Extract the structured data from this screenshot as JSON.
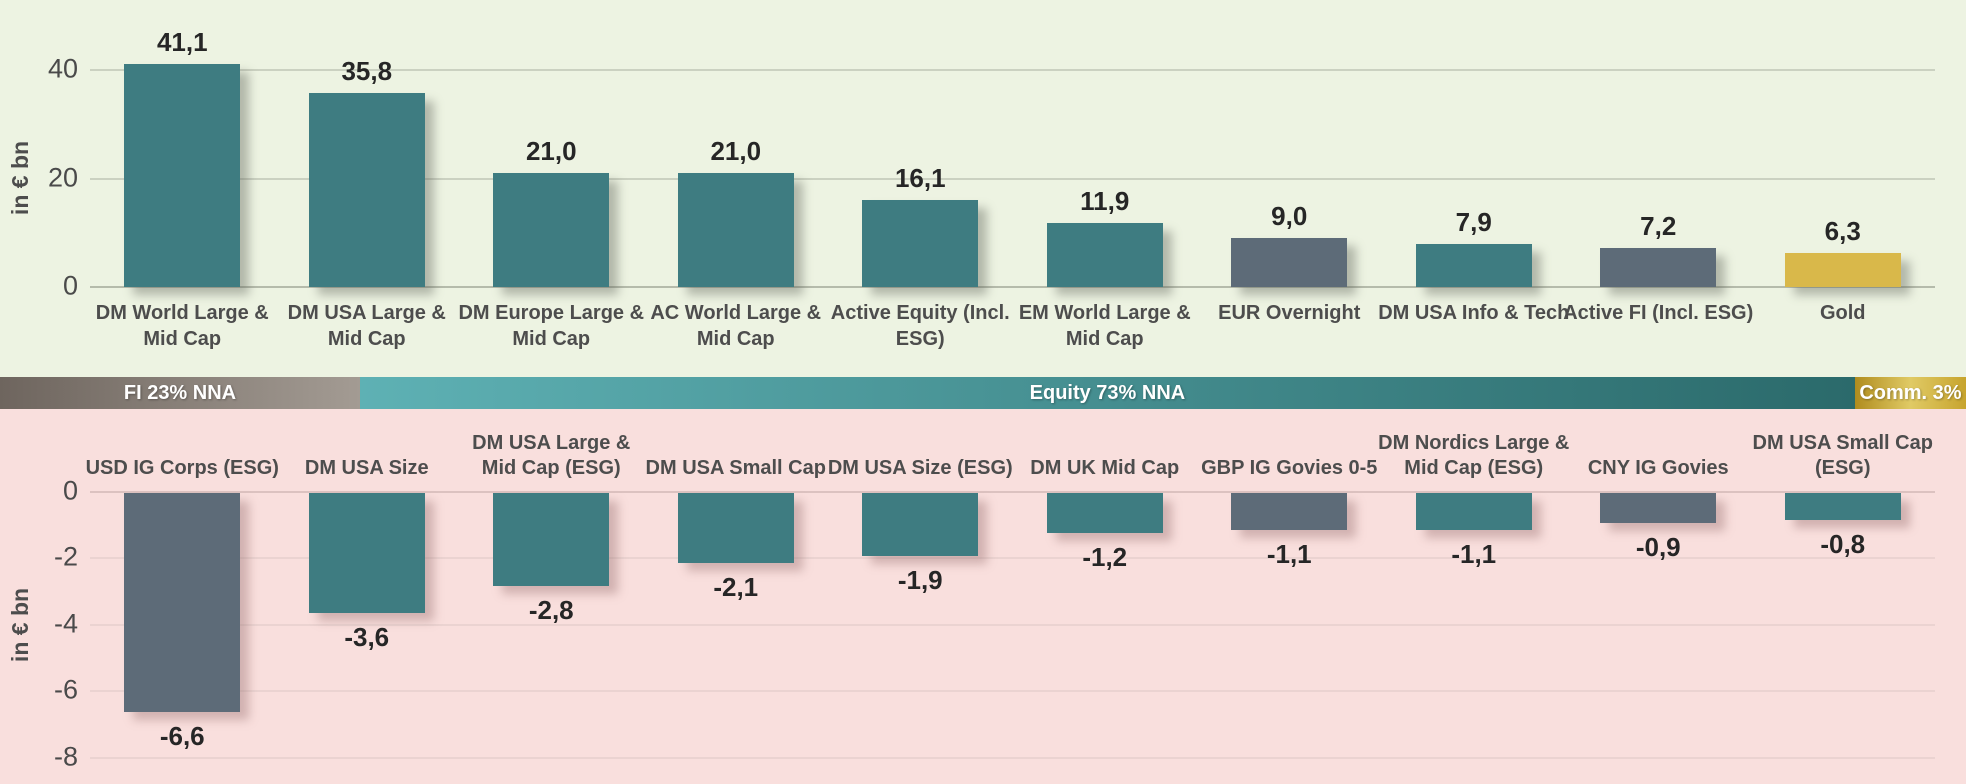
{
  "banner": {
    "segments": [
      {
        "label": "FI 23% NNA",
        "width_pct": 18.31,
        "gradient": [
          "#6E655E",
          "#A39B93"
        ]
      },
      {
        "label": "Equity 73% NNA",
        "width_pct": 76.04,
        "gradient": [
          "#5EB1B4",
          "#2B6A6B"
        ]
      },
      {
        "label": "Comm. 3%",
        "width_pct": 5.65,
        "gradient": [
          "#B08C1E",
          "#E0CA65",
          "#C7A42E"
        ]
      }
    ],
    "text_color": "#FFFFFF"
  },
  "palette": {
    "teal": "#3E7C81",
    "slate": "#5D6B78",
    "gold": "#D9B84A"
  },
  "chart_data": [
    {
      "type": "bar",
      "ylabel": "in € bn",
      "background": "#EDF3E2",
      "grid_color": "#CBD1C1",
      "zero_line_color": "#B5BBAB",
      "ylim": [
        0,
        49
      ],
      "legend": "none",
      "grid": "horizontal",
      "yticks": [
        {
          "value": 0,
          "label": "0"
        },
        {
          "value": 20,
          "label": "20"
        },
        {
          "value": 40,
          "label": "40"
        }
      ],
      "categories": [
        "DM World Large & Mid Cap",
        "DM USA Large & Mid Cap",
        "DM Europe Large & Mid Cap",
        "AC World Large & Mid Cap",
        "Active Equity (Incl. ESG)",
        "EM World Large & Mid Cap",
        "EUR Overnight",
        "DM USA Info & Tech",
        "Active FI (Incl. ESG)",
        "Gold"
      ],
      "values": [
        41.1,
        35.8,
        21.0,
        21.0,
        16.1,
        11.9,
        9.0,
        7.9,
        7.2,
        6.3
      ],
      "value_labels": [
        "41,1",
        "35,8",
        "21,0",
        "21,0",
        "16,1",
        "11,9",
        "9,0",
        "7,9",
        "7,2",
        "6,3"
      ],
      "bar_colors": [
        "teal",
        "teal",
        "teal",
        "teal",
        "teal",
        "teal",
        "slate",
        "teal",
        "slate",
        "gold"
      ]
    },
    {
      "type": "bar",
      "ylabel": "in € bn",
      "background": "#F9DFDD",
      "grid_color": "#EBD3D1",
      "zero_line_color": "#DCC2C0",
      "ylim": [
        -8.8,
        0
      ],
      "legend": "none",
      "grid": "horizontal",
      "yticks": [
        {
          "value": 0,
          "label": "0"
        },
        {
          "value": -2,
          "label": "-2"
        },
        {
          "value": -4,
          "label": "-4"
        },
        {
          "value": -6,
          "label": "-6"
        },
        {
          "value": -8,
          "label": "-8"
        }
      ],
      "categories": [
        "USD IG Corps (ESG)",
        "DM USA Size",
        "DM USA Large & Mid Cap (ESG)",
        "DM USA Small Cap",
        "DM USA Size (ESG)",
        "DM UK Mid Cap",
        "GBP IG Govies 0-5",
        "DM Nordics Large & Mid Cap (ESG)",
        "CNY IG Govies",
        "DM USA Small Cap (ESG)"
      ],
      "values": [
        -6.6,
        -3.6,
        -2.8,
        -2.1,
        -1.9,
        -1.2,
        -1.1,
        -1.1,
        -0.9,
        -0.8
      ],
      "value_labels": [
        "-6,6",
        "-3,6",
        "-2,8",
        "-2,1",
        "-1,9",
        "-1,2",
        "-1,1",
        "-1,1",
        "-0,9",
        "-0,8"
      ],
      "bar_colors": [
        "slate",
        "teal",
        "teal",
        "teal",
        "teal",
        "teal",
        "slate",
        "teal",
        "slate",
        "teal"
      ]
    }
  ]
}
